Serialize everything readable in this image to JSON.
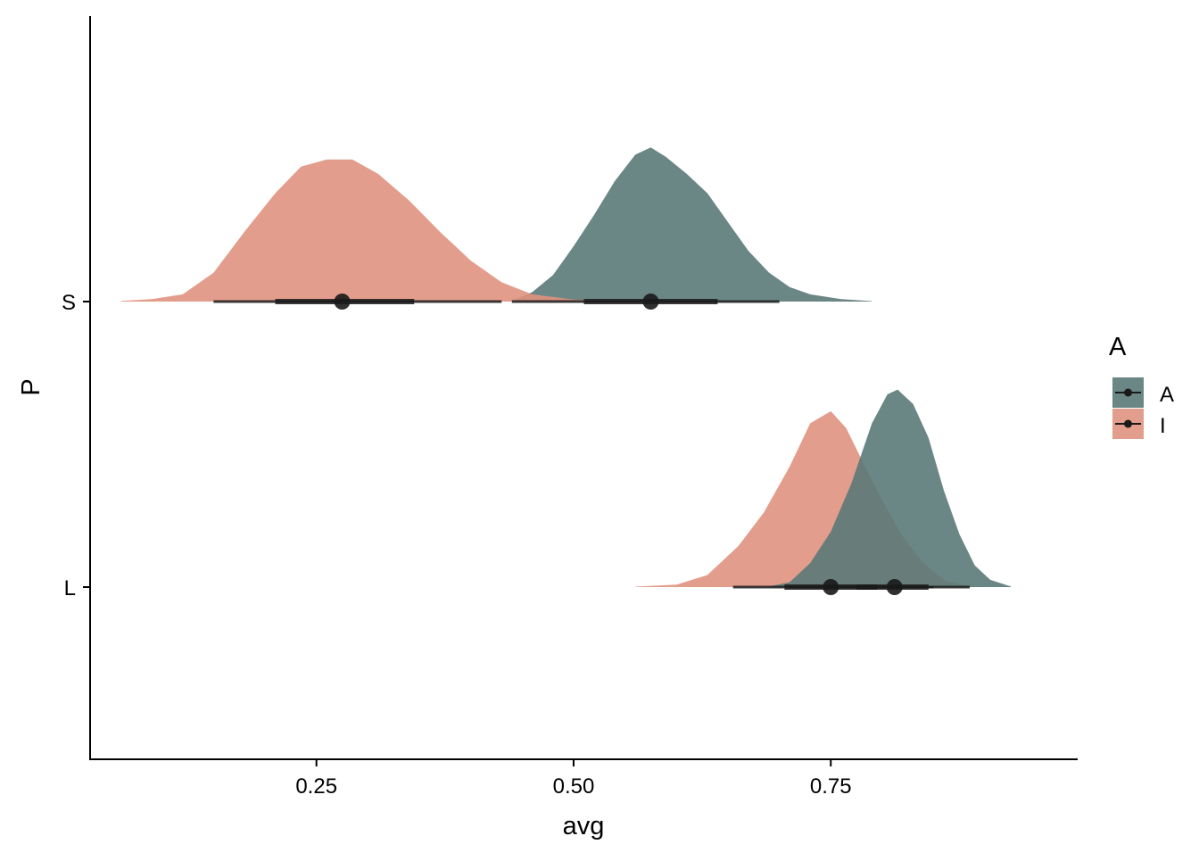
{
  "chart_data": {
    "type": "halfeye",
    "xlabel": "avg",
    "ylabel": "P",
    "xlim": [
      0.03,
      0.99
    ],
    "x_ticks": [
      0.25,
      0.5,
      0.75
    ],
    "x_tick_labels": [
      "0.25",
      "0.50",
      "0.75"
    ],
    "categories": [
      "S",
      "L"
    ],
    "grid": false,
    "legend": {
      "title": "A",
      "placement": "right",
      "entries": [
        {
          "label": "A",
          "color": "#5a7a78"
        },
        {
          "label": "I",
          "color": "#e0927f"
        }
      ]
    },
    "series": [
      {
        "group": "A",
        "category": "S",
        "color": "#5a7a78",
        "density": [
          [
            0.44,
            0.003
          ],
          [
            0.46,
            0.04
          ],
          [
            0.48,
            0.11
          ],
          [
            0.5,
            0.23
          ],
          [
            0.52,
            0.36
          ],
          [
            0.54,
            0.5
          ],
          [
            0.56,
            0.61
          ],
          [
            0.575,
            0.64
          ],
          [
            0.59,
            0.6
          ],
          [
            0.61,
            0.53
          ],
          [
            0.63,
            0.45
          ],
          [
            0.65,
            0.33
          ],
          [
            0.67,
            0.21
          ],
          [
            0.69,
            0.12
          ],
          [
            0.71,
            0.06
          ],
          [
            0.73,
            0.03
          ],
          [
            0.76,
            0.01
          ],
          [
            0.79,
            0.002
          ]
        ],
        "point": 0.575,
        "interval_66": [
          0.51,
          0.64
        ],
        "interval_95": [
          0.44,
          0.7
        ]
      },
      {
        "group": "I",
        "category": "S",
        "color": "#e0927f",
        "density": [
          [
            0.06,
            0.003
          ],
          [
            0.09,
            0.01
          ],
          [
            0.12,
            0.03
          ],
          [
            0.15,
            0.12
          ],
          [
            0.18,
            0.29
          ],
          [
            0.21,
            0.45
          ],
          [
            0.235,
            0.56
          ],
          [
            0.26,
            0.59
          ],
          [
            0.285,
            0.59
          ],
          [
            0.31,
            0.53
          ],
          [
            0.34,
            0.42
          ],
          [
            0.37,
            0.29
          ],
          [
            0.4,
            0.17
          ],
          [
            0.43,
            0.08
          ],
          [
            0.46,
            0.03
          ],
          [
            0.5,
            0.008
          ],
          [
            0.55,
            0.001
          ]
        ],
        "point": 0.275,
        "interval_66": [
          0.21,
          0.345
        ],
        "interval_95": [
          0.15,
          0.43
        ]
      },
      {
        "group": "I",
        "category": "L",
        "color": "#e0927f",
        "density": [
          [
            0.56,
            0.002
          ],
          [
            0.6,
            0.01
          ],
          [
            0.63,
            0.05
          ],
          [
            0.66,
            0.17
          ],
          [
            0.685,
            0.31
          ],
          [
            0.71,
            0.5
          ],
          [
            0.73,
            0.68
          ],
          [
            0.75,
            0.73
          ],
          [
            0.765,
            0.66
          ],
          [
            0.78,
            0.53
          ],
          [
            0.8,
            0.36
          ],
          [
            0.82,
            0.21
          ],
          [
            0.84,
            0.1
          ],
          [
            0.86,
            0.03
          ],
          [
            0.88,
            0.005
          ],
          [
            0.9,
            0.001
          ]
        ],
        "point": 0.75,
        "interval_66": [
          0.705,
          0.795
        ],
        "interval_95": [
          0.655,
          0.85
        ]
      },
      {
        "group": "A",
        "category": "L",
        "color": "#5a7a78",
        "density": [
          [
            0.69,
            0.003
          ],
          [
            0.71,
            0.02
          ],
          [
            0.73,
            0.1
          ],
          [
            0.75,
            0.23
          ],
          [
            0.77,
            0.43
          ],
          [
            0.79,
            0.68
          ],
          [
            0.805,
            0.8
          ],
          [
            0.815,
            0.82
          ],
          [
            0.83,
            0.76
          ],
          [
            0.845,
            0.62
          ],
          [
            0.86,
            0.4
          ],
          [
            0.875,
            0.22
          ],
          [
            0.89,
            0.09
          ],
          [
            0.905,
            0.03
          ],
          [
            0.925,
            0.003
          ]
        ],
        "point": 0.812,
        "interval_66": [
          0.775,
          0.845
        ],
        "interval_95": [
          0.71,
          0.885
        ]
      }
    ]
  }
}
